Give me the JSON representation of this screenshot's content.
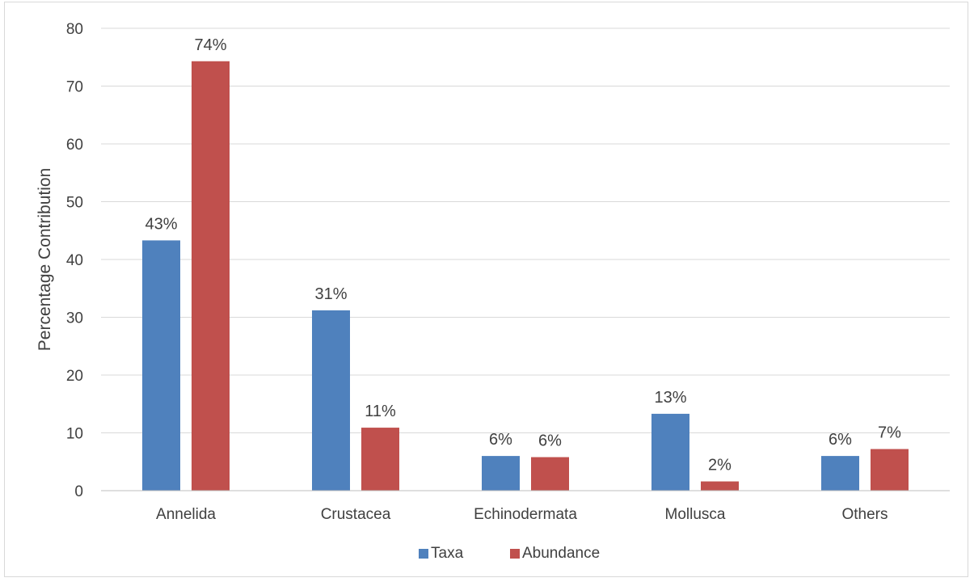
{
  "chart_data": {
    "type": "bar",
    "title": "",
    "xlabel": "",
    "ylabel": "Percentage Contribution",
    "ylim": [
      0,
      80
    ],
    "yticks": [
      0,
      10,
      20,
      30,
      40,
      50,
      60,
      70,
      80
    ],
    "grid": true,
    "legend_position": "bottom",
    "categories": [
      "Annelida",
      "Crustacea",
      "Echinodermata",
      "Mollusca",
      "Others"
    ],
    "series": [
      {
        "name": "Taxa",
        "color": "#4f81bd",
        "values": [
          43.3,
          31.2,
          6.0,
          13.3,
          6.0
        ],
        "labels": [
          "43%",
          "31%",
          "6%",
          "13%",
          "6%"
        ]
      },
      {
        "name": "Abundance",
        "color": "#c0504d",
        "values": [
          74.3,
          10.9,
          5.8,
          1.6,
          7.2
        ],
        "labels": [
          "74%",
          "11%",
          "6%",
          "2%",
          "7%"
        ]
      }
    ]
  }
}
